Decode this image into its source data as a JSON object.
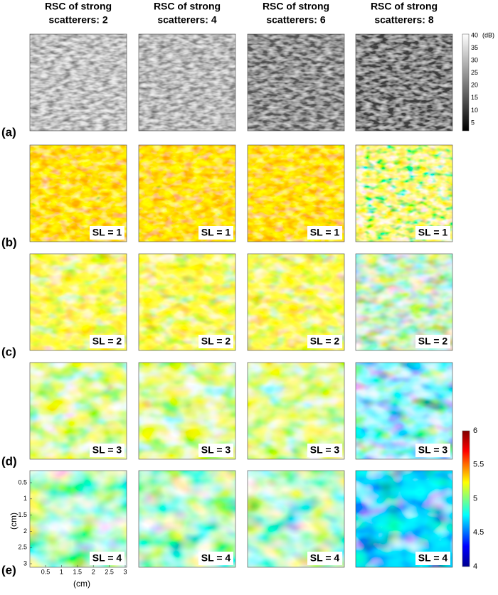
{
  "columns": [
    {
      "title_lines": [
        "RSC of strong",
        "scatterers: 2"
      ]
    },
    {
      "title_lines": [
        "RSC of strong",
        "scatterers: 4"
      ]
    },
    {
      "title_lines": [
        "RSC of strong",
        "scatterers: 6"
      ]
    },
    {
      "title_lines": [
        "RSC of strong",
        "scatterers: 8"
      ]
    }
  ],
  "rows": [
    {
      "label": "(a)"
    },
    {
      "label": "(b)",
      "sl_label": "SL = 1"
    },
    {
      "label": "(c)",
      "sl_label": "SL = 2"
    },
    {
      "label": "(d)",
      "sl_label": "SL = 3"
    },
    {
      "label": "(e)",
      "sl_label": "SL = 4"
    }
  ],
  "gray_colorbar": {
    "unit": "(dB)",
    "ticks": [
      "40",
      "35",
      "30",
      "25",
      "20",
      "15",
      "10",
      "5"
    ]
  },
  "color_colorbar": {
    "ticks": [
      "6",
      "5.5",
      "5",
      "4.5",
      "4"
    ]
  },
  "axes": {
    "x_label": "(cm)",
    "y_label": "(cm)",
    "x_ticks": [
      "0.5",
      "1",
      "1.5",
      "2",
      "2.5",
      "3"
    ],
    "y_ticks": [
      "0.5",
      "1",
      "1.5",
      "2",
      "2.5",
      "3"
    ]
  }
}
